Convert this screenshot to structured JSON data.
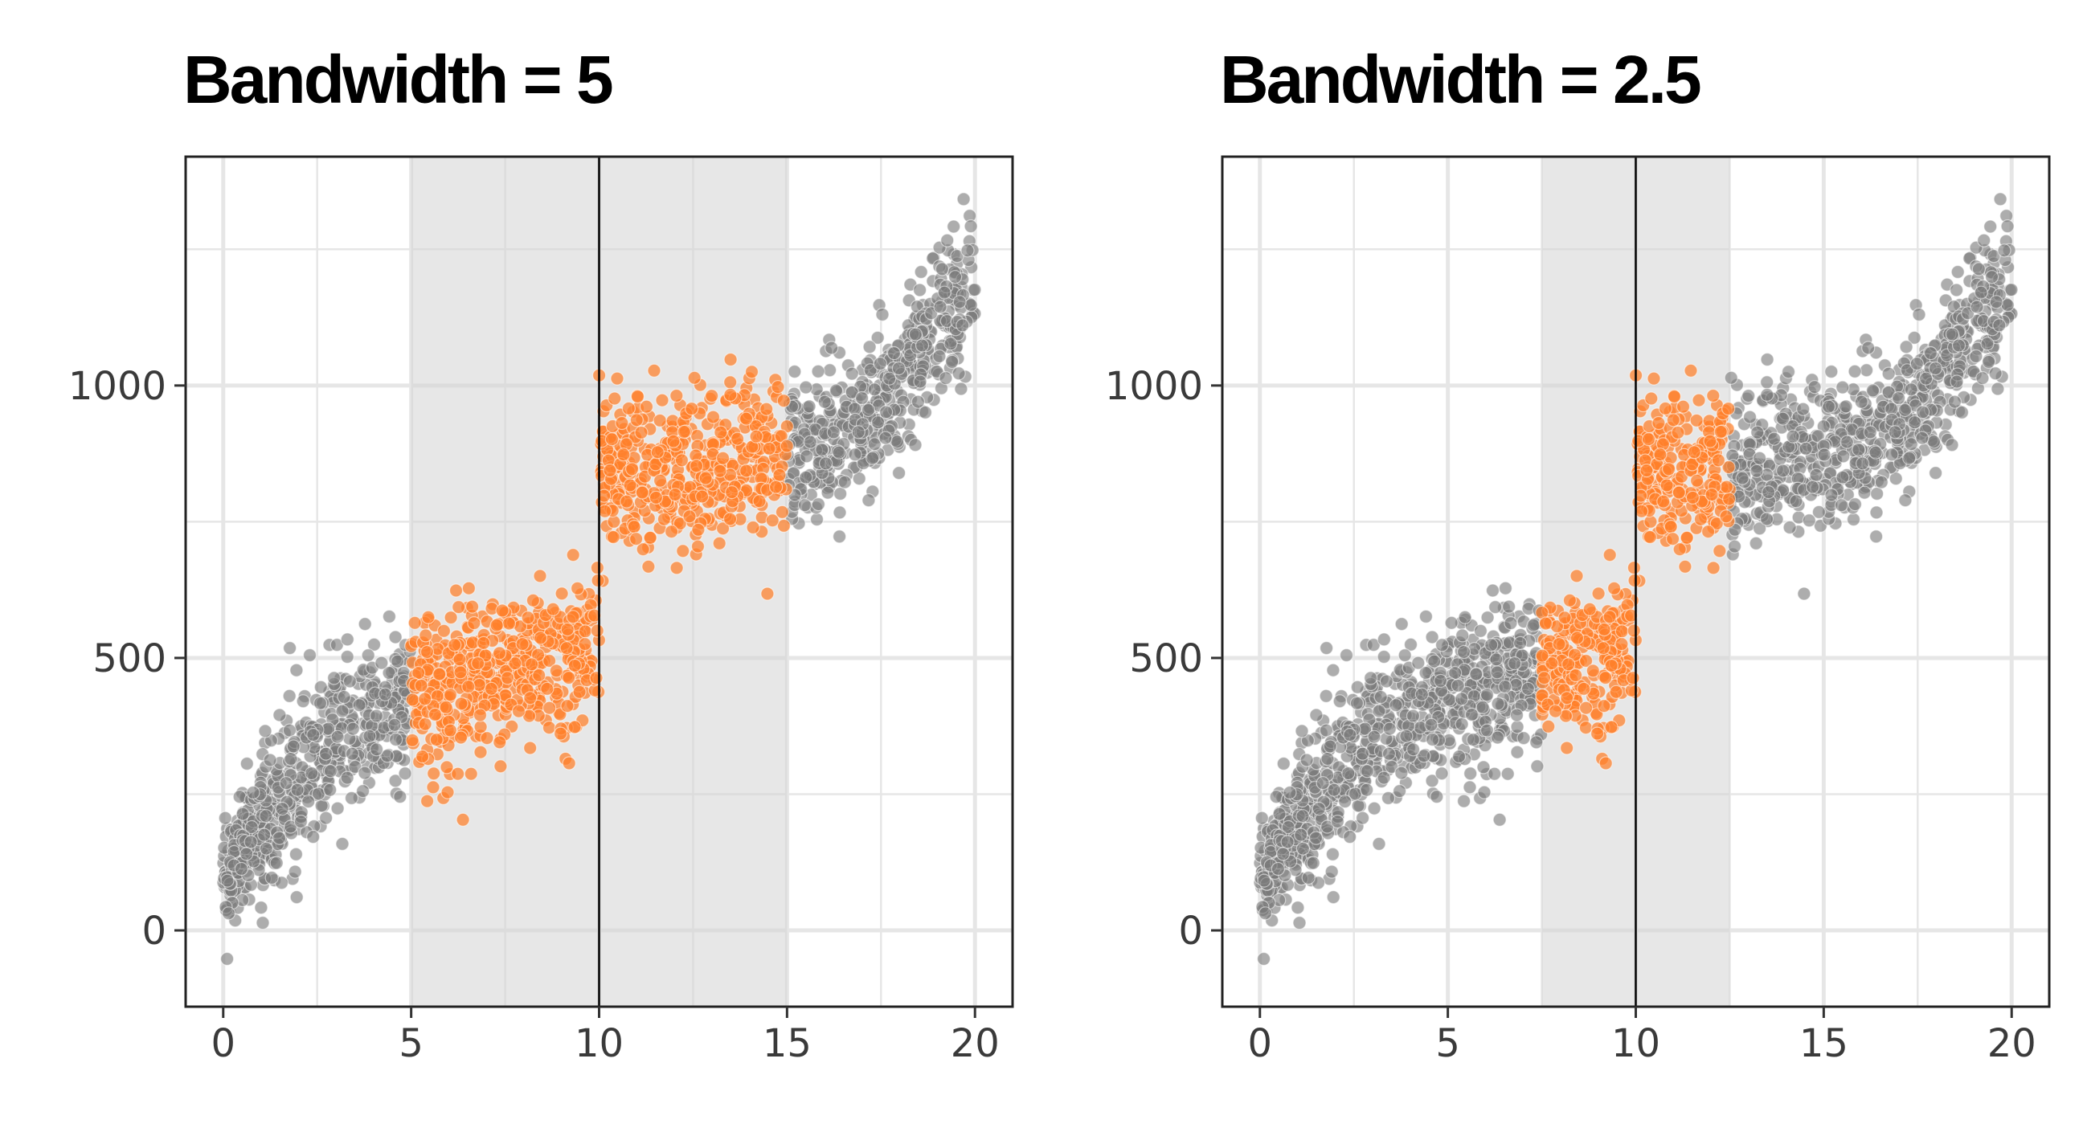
{
  "colors": {
    "highlight": "#ff7f2a",
    "other": "#7a7a7a",
    "band": "#e7e7e7",
    "grid": "#e6e6e6",
    "cutoff_line": "#000000"
  },
  "chart_data": [
    {
      "type": "scatter",
      "title": "Bandwidth = 5",
      "xlabel": "",
      "ylabel": "",
      "xlim": [
        -1,
        21
      ],
      "ylim": [
        -140,
        1420
      ],
      "x_ticks": [
        0,
        5,
        10,
        15,
        20
      ],
      "x_tick_labels": [
        "0",
        "5",
        "10",
        "15",
        "20"
      ],
      "y_ticks": [
        0,
        500,
        1000
      ],
      "y_tick_labels": [
        "0",
        "500",
        "1000"
      ],
      "grid": true,
      "cutoff": 10,
      "bandwidth": 5,
      "band": [
        5,
        15
      ],
      "n_points": 2000,
      "trend": {
        "below_cutoff": {
          "x": [
            0,
            2.5,
            5,
            7.5,
            10
          ],
          "y": [
            100,
            330,
            430,
            480,
            520
          ]
        },
        "above_cutoff": {
          "x": [
            10,
            12.5,
            15,
            17.5,
            20
          ],
          "y": [
            830,
            850,
            870,
            960,
            1180
          ]
        }
      },
      "point_spread": 70,
      "series": [
        {
          "name": "",
          "role": "inside bandwidth",
          "color": "#ff7f2a"
        },
        {
          "name": "",
          "role": "outside bandwidth",
          "color": "#7a7a7a"
        }
      ]
    },
    {
      "type": "scatter",
      "title": "Bandwidth = 2.5",
      "xlabel": "",
      "ylabel": "",
      "xlim": [
        -1,
        21
      ],
      "ylim": [
        -140,
        1420
      ],
      "x_ticks": [
        0,
        5,
        10,
        15,
        20
      ],
      "x_tick_labels": [
        "0",
        "5",
        "10",
        "15",
        "20"
      ],
      "y_ticks": [
        0,
        500,
        1000
      ],
      "y_tick_labels": [
        "0",
        "500",
        "1000"
      ],
      "grid": true,
      "cutoff": 10,
      "bandwidth": 2.5,
      "band": [
        7.5,
        12.5
      ],
      "n_points": 2000,
      "trend": {
        "below_cutoff": {
          "x": [
            0,
            2.5,
            5,
            7.5,
            10
          ],
          "y": [
            100,
            330,
            430,
            480,
            520
          ]
        },
        "above_cutoff": {
          "x": [
            10,
            12.5,
            15,
            17.5,
            20
          ],
          "y": [
            830,
            850,
            870,
            960,
            1180
          ]
        }
      },
      "point_spread": 70,
      "series": [
        {
          "name": "",
          "role": "inside bandwidth",
          "color": "#ff7f2a"
        },
        {
          "name": "",
          "role": "outside bandwidth",
          "color": "#7a7a7a"
        }
      ]
    }
  ]
}
